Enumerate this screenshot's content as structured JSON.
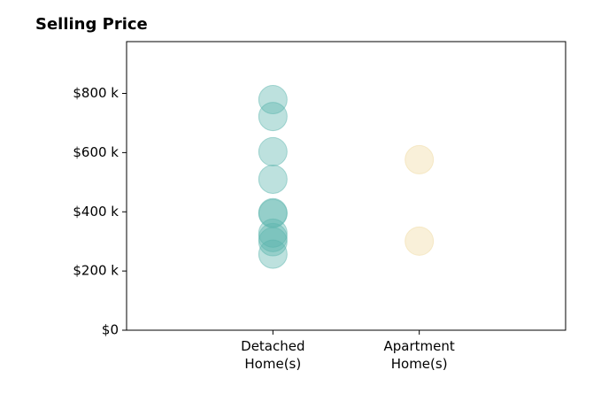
{
  "chart_data": {
    "type": "strip",
    "title": "Selling Price",
    "categories": [
      "Detached\nHome(s)",
      "Apartment\nHome(s)"
    ],
    "values": [
      [
        779000,
        722000,
        603000,
        510000,
        397000,
        394000,
        328000,
        313000,
        299000,
        257000
      ],
      [
        576000,
        301000
      ]
    ],
    "colors": [
      "#5bb5ad",
      "#f0d9a0"
    ],
    "ylim": [
      0,
      975000
    ],
    "yticks": [
      {
        "value": 0,
        "label": "$0"
      },
      {
        "value": 200000,
        "label": "$200 k"
      },
      {
        "value": 400000,
        "label": "$400 k"
      },
      {
        "value": 600000,
        "label": "$600 k"
      },
      {
        "value": 800000,
        "label": "$800 k"
      }
    ]
  }
}
